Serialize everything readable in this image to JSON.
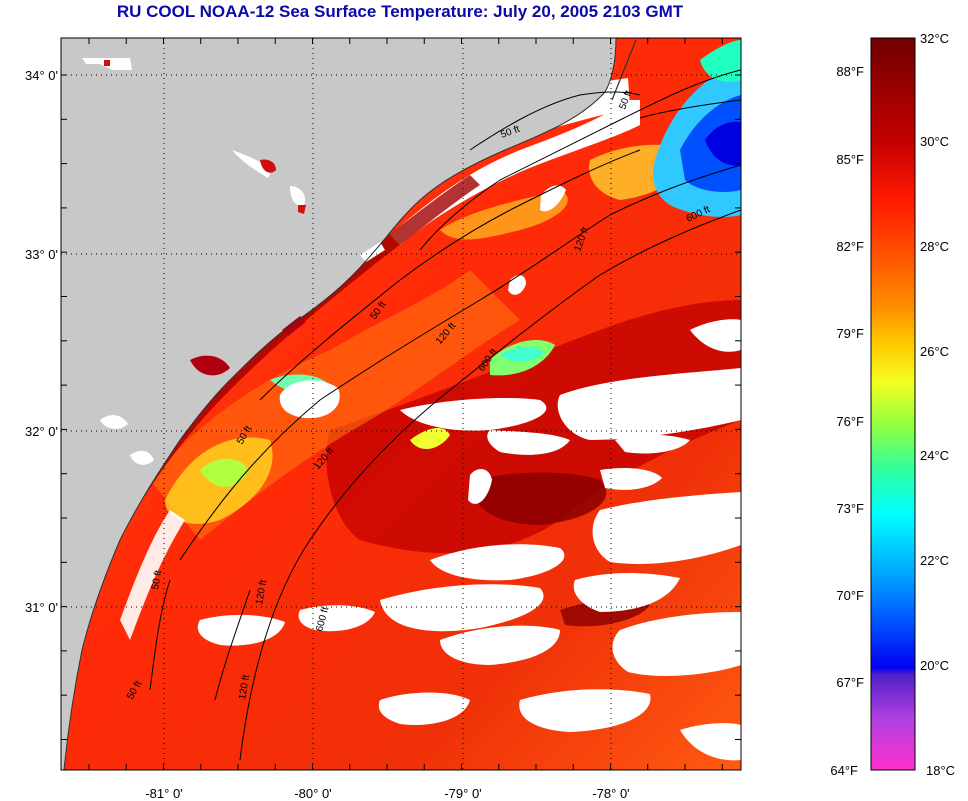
{
  "title": "RU COOL  NOAA-12  Sea Surface Temperature:  July 20, 2005 2103 GMT",
  "map": {
    "lat_labels": [
      "34° 0'",
      "33° 0'",
      "32° 0'",
      "31° 0'"
    ],
    "lon_labels": [
      "-81° 0'",
      "-80° 0'",
      "-79° 0'",
      "-78° 0'"
    ],
    "contour_labels": [
      "50 ft",
      "50 ft",
      "120 ft",
      "600 ft",
      "50 ft",
      "120 ft",
      "600 ft",
      "120 ft",
      "50 ft",
      "600 ft",
      "120 ft",
      "50 ft",
      "50 ft",
      "120 ft"
    ]
  },
  "colorbar": {
    "fahrenheit_labels": [
      "88°F",
      "85°F",
      "82°F",
      "79°F",
      "76°F",
      "73°F",
      "70°F",
      "67°F",
      "64°F"
    ],
    "celsius_labels": [
      "32°C",
      "30°C",
      "28°C",
      "26°C",
      "24°C",
      "22°C",
      "20°C",
      "18°C"
    ],
    "colors": [
      "#7a0000",
      "#c80000",
      "#ff1a00",
      "#ff6a00",
      "#ff9a00",
      "#ffd000",
      "#f0ff20",
      "#90ff40",
      "#20ffb0",
      "#00ffff",
      "#00b8ff",
      "#0060ff",
      "#0000ff",
      "#6030d0",
      "#c040e0",
      "#ff30d0"
    ]
  }
}
